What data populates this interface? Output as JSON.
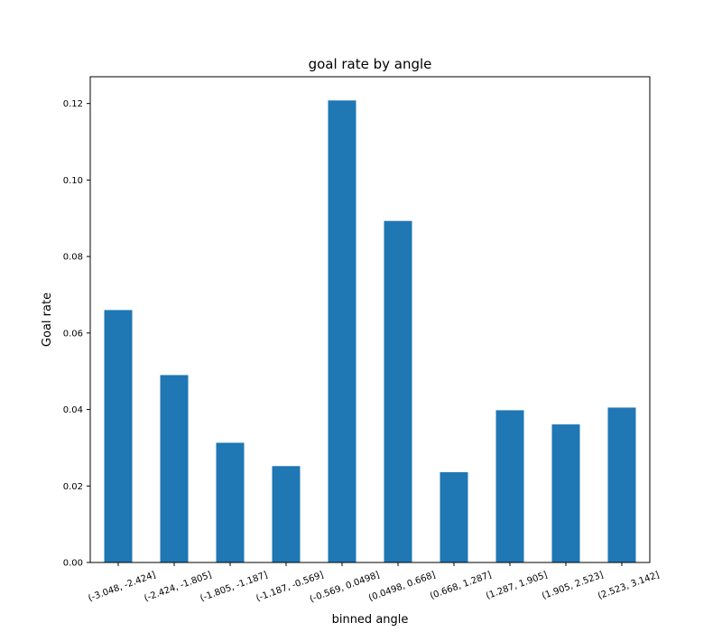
{
  "chart_data": {
    "type": "bar",
    "title": "goal rate by angle",
    "xlabel": "binned angle",
    "ylabel": "Goal rate",
    "categories": [
      "(-3.048, -2.424]",
      "(-2.424, -1.805]",
      "(-1.805, -1.187]",
      "(-1.187, -0.569]",
      "(-0.569, 0.0498]",
      "(0.0498, 0.668]",
      "(0.668, 1.287]",
      "(1.287, 1.905]",
      "(1.905, 2.523]",
      "(2.523, 3.142]"
    ],
    "values": [
      0.066,
      0.049,
      0.0313,
      0.0252,
      0.1208,
      0.0893,
      0.0236,
      0.0398,
      0.0361,
      0.0405
    ],
    "ylim": [
      0,
      0.127
    ],
    "yticks": [
      "0.00",
      "0.02",
      "0.04",
      "0.06",
      "0.08",
      "0.10",
      "0.12"
    ],
    "grid": false,
    "bar_color": "#1f77b4"
  }
}
